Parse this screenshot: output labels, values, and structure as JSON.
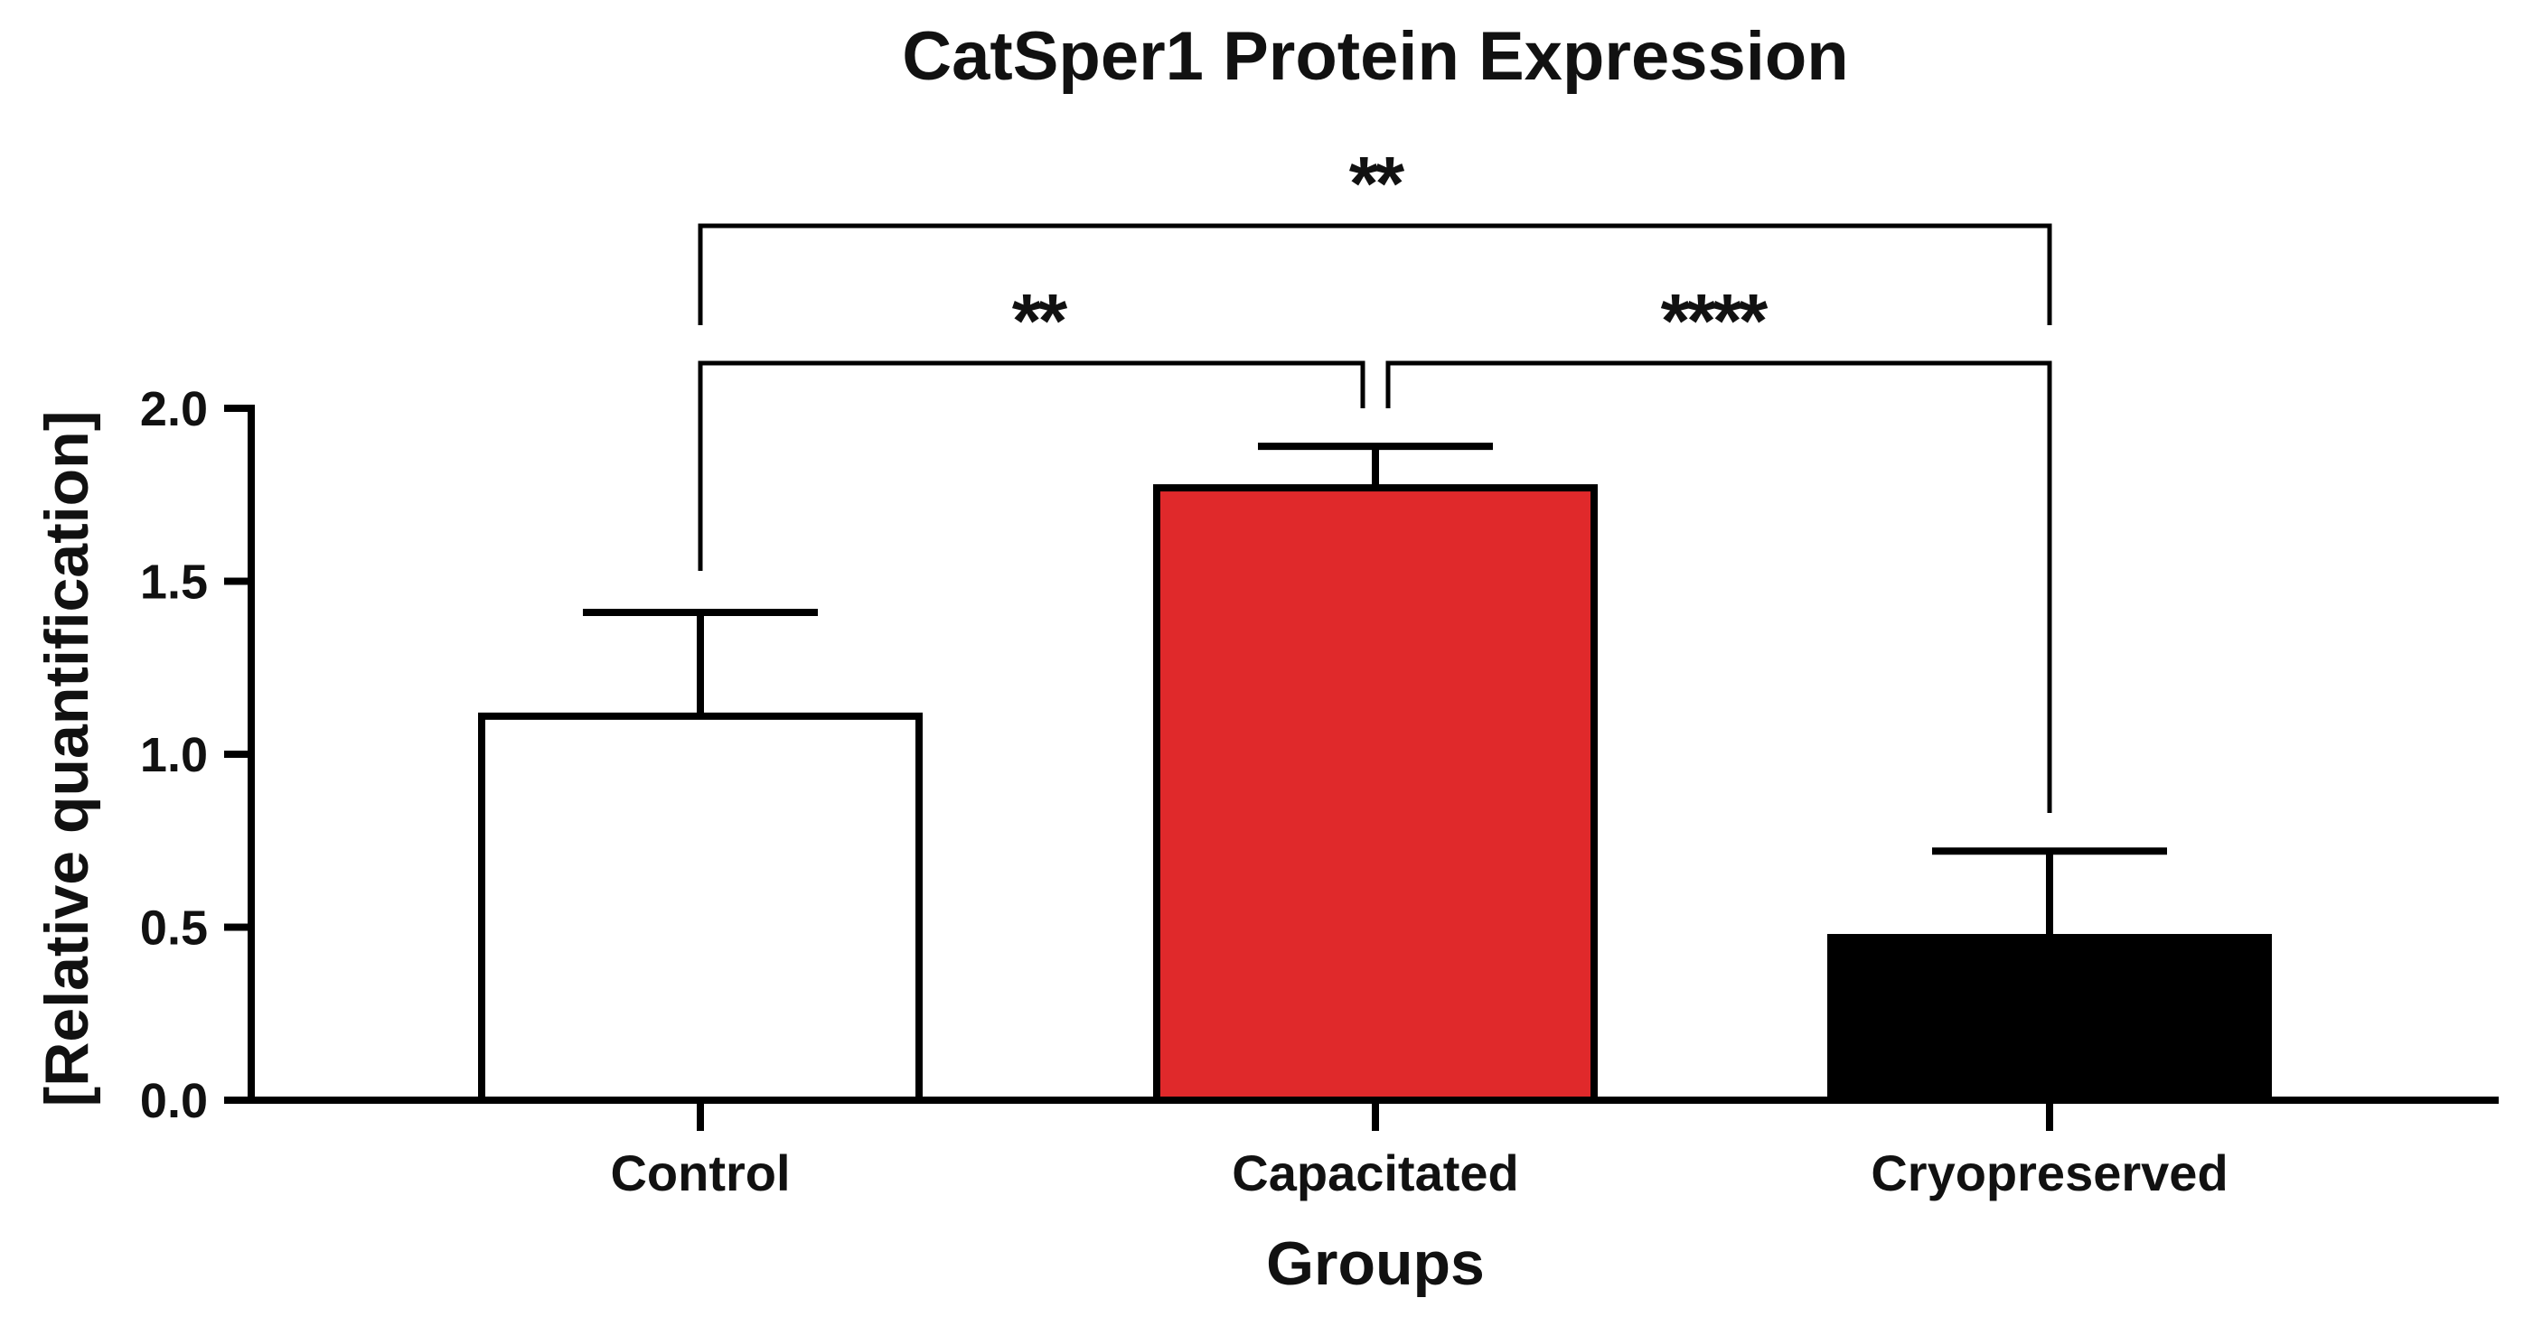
{
  "chart_data": {
    "type": "bar",
    "title": "CatSper1 Protein Expression",
    "xlabel": "Groups",
    "ylabel": "[Relative quantification]",
    "categories": [
      "Control",
      "Capacitated",
      "Cryopreserved"
    ],
    "values": [
      1.11,
      1.77,
      0.47
    ],
    "error": [
      0.3,
      0.12,
      0.25
    ],
    "colors": [
      "#ffffff",
      "#e0292b",
      "#000000"
    ],
    "ylim": [
      0,
      2.0
    ],
    "yticks": [
      "0.0",
      "0.5",
      "1.0",
      "1.5",
      "2.0"
    ],
    "grid": false,
    "significance": [
      {
        "from": "Control",
        "to": "Capacitated",
        "label": "**"
      },
      {
        "from": "Capacitated",
        "to": "Cryopreserved",
        "label": "****"
      },
      {
        "from": "Control",
        "to": "Cryopreserved",
        "label": "**"
      }
    ]
  }
}
